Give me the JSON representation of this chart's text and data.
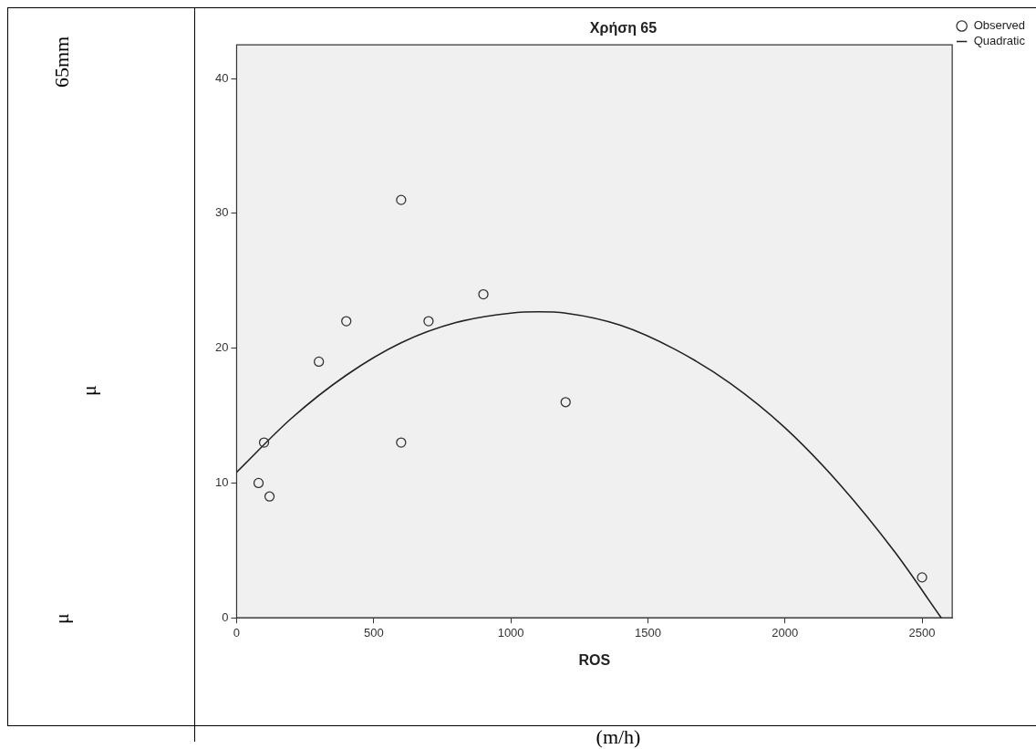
{
  "chart_data": {
    "type": "scatter",
    "title": "Χρήση 65",
    "xlabel": "ROS",
    "annotations": [
      "65mm",
      "μ",
      "μ",
      "(m/h)"
    ],
    "xlim": [
      0,
      2610
    ],
    "xticks": [
      0,
      500,
      1000,
      1500,
      2000,
      2500
    ],
    "ylim": [
      0,
      42.5
    ],
    "yticks": [
      0,
      10,
      20,
      30,
      40
    ],
    "grid": false,
    "legend": "top right",
    "series": [
      {
        "name": "Observed",
        "marker": "circle",
        "color": "#333333",
        "x": [
          80,
          100,
          120,
          300,
          400,
          600,
          600,
          700,
          900,
          1200,
          2500
        ],
        "values": [
          10,
          13,
          9,
          19,
          22,
          31,
          13,
          22,
          24,
          16,
          3
        ]
      },
      {
        "name": "Quadratic",
        "type": "line",
        "marker": "none",
        "line_style": "solid",
        "color": "#222222",
        "x": [
          0,
          200,
          400,
          600,
          800,
          1000,
          1100,
          1200,
          1400,
          1600,
          1800,
          2000,
          2200,
          2400,
          2570
        ],
        "values": [
          10.8,
          14.8,
          18.0,
          20.4,
          21.9,
          22.6,
          22.7,
          22.6,
          21.7,
          19.9,
          17.4,
          14.1,
          9.9,
          4.9,
          0
        ]
      }
    ]
  }
}
